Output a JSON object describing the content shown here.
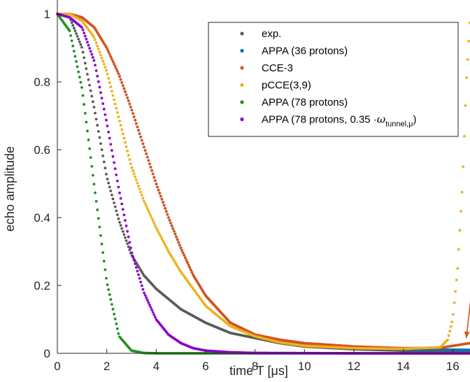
{
  "chart_data": {
    "type": "scatter",
    "xlabel": "time T [μs]",
    "ylabel": "echo amplitude",
    "xlim": [
      0,
      16.7
    ],
    "ylim": [
      0,
      1
    ],
    "xticks": [
      0,
      2,
      4,
      6,
      8,
      10,
      12,
      14,
      16
    ],
    "yticks": [
      0,
      0.2,
      0.4,
      0.6,
      0.8,
      1
    ],
    "ytick_labels": [
      "0",
      "0.2",
      "0.4",
      "0.6",
      "0.8",
      "1"
    ],
    "grid": false,
    "legend_position": "top-right",
    "series": [
      {
        "name": "exp.",
        "color": "#595959",
        "x": [
          0,
          0.5,
          1.0,
          1.5,
          2.0,
          2.5,
          3.0,
          3.5,
          4.0,
          5.0,
          6.0,
          7.0,
          8.0,
          9.0,
          10.0,
          12.0,
          14.0,
          16.7
        ],
        "y": [
          1.0,
          0.99,
          0.9,
          0.72,
          0.52,
          0.39,
          0.29,
          0.23,
          0.19,
          0.13,
          0.09,
          0.06,
          0.045,
          0.03,
          0.02,
          0.012,
          0.008,
          0.005
        ]
      },
      {
        "name": "APPA (36 protons)",
        "color": "#0072BD",
        "x": [
          0,
          0.5,
          1.0,
          1.5,
          2.0,
          2.5,
          3.0,
          3.5,
          4.0,
          4.5,
          5.0,
          5.5,
          6.0,
          7.0,
          8.0,
          9.0,
          10.0,
          12.0,
          14.0,
          16.7
        ],
        "y": [
          1.0,
          1.0,
          0.99,
          0.96,
          0.9,
          0.82,
          0.72,
          0.61,
          0.5,
          0.4,
          0.31,
          0.23,
          0.17,
          0.09,
          0.055,
          0.035,
          0.025,
          0.015,
          0.012,
          0.01
        ]
      },
      {
        "name": "CCE-3",
        "color": "#D95319",
        "x": [
          0,
          0.5,
          1.0,
          1.5,
          2.0,
          2.5,
          3.0,
          3.5,
          4.0,
          4.5,
          5.0,
          5.5,
          6.0,
          7.0,
          8.0,
          9.0,
          10.0,
          12.0,
          14.0,
          15.5,
          16.0,
          16.7
        ],
        "y": [
          1.0,
          1.0,
          0.99,
          0.96,
          0.9,
          0.82,
          0.72,
          0.61,
          0.5,
          0.4,
          0.31,
          0.23,
          0.17,
          0.09,
          0.055,
          0.04,
          0.03,
          0.02,
          0.015,
          0.016,
          0.022,
          0.03
        ]
      },
      {
        "name": "pCCE(3,9)",
        "color": "#EDB120",
        "x": [
          0,
          0.5,
          1.0,
          1.5,
          2.0,
          2.5,
          3.0,
          3.5,
          4.0,
          4.5,
          5.0,
          5.5,
          6.0,
          7.0,
          8.0,
          9.0,
          10.0,
          12.0,
          14.0,
          15.5,
          15.8,
          16.0,
          16.2,
          16.4,
          16.55,
          16.7
        ],
        "y": [
          1.0,
          1.0,
          0.98,
          0.93,
          0.83,
          0.69,
          0.55,
          0.45,
          0.37,
          0.3,
          0.24,
          0.19,
          0.14,
          0.08,
          0.05,
          0.032,
          0.022,
          0.015,
          0.013,
          0.018,
          0.04,
          0.1,
          0.25,
          0.5,
          0.8,
          0.98
        ]
      },
      {
        "name": "APPA (78 protons)",
        "color": "#1F8F1F",
        "x": [
          0,
          0.5,
          1.0,
          1.5,
          2.0,
          2.5,
          3.0,
          3.5,
          4.0,
          5.0,
          8.0,
          12.0,
          16.7
        ],
        "y": [
          1.0,
          0.95,
          0.78,
          0.49,
          0.21,
          0.05,
          0.008,
          0.001,
          0.0,
          0.0,
          0.0,
          0.0,
          0.0
        ]
      },
      {
        "name": "APPA (78 protons, 0.35 ·ω_tunnel,μ)",
        "color": "#8B00C9",
        "x": [
          0,
          0.5,
          1.0,
          1.5,
          2.0,
          2.5,
          3.0,
          3.5,
          4.0,
          4.5,
          5.0,
          5.5,
          6.0,
          7.0,
          8.0,
          12.0,
          16.7
        ],
        "y": [
          1.0,
          0.99,
          0.96,
          0.86,
          0.68,
          0.48,
          0.3,
          0.18,
          0.1,
          0.055,
          0.03,
          0.015,
          0.008,
          0.003,
          0.001,
          0.0,
          0.0
        ]
      }
    ],
    "annotation": {
      "type": "arrow",
      "color": "#D95319",
      "from": [
        16.95,
        0.3
      ],
      "to": [
        16.55,
        0.045
      ]
    }
  }
}
